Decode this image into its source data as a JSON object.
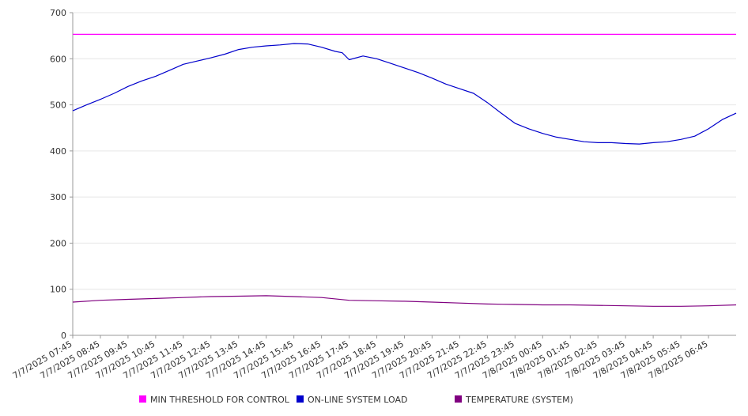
{
  "chart_data": {
    "type": "line",
    "title": "",
    "xlabel": "",
    "ylabel": "",
    "ylim": [
      0,
      700
    ],
    "yticks": [
      0,
      100,
      200,
      300,
      400,
      500,
      600,
      700
    ],
    "xticks": [
      "7/7/2025 07:45",
      "7/7/2025 08:45",
      "7/7/2025 09:45",
      "7/7/2025 10:45",
      "7/7/2025 11:45",
      "7/7/2025 12:45",
      "7/7/2025 13:45",
      "7/7/2025 14:45",
      "7/7/2025 15:45",
      "7/7/2025 16:45",
      "7/7/2025 17:45",
      "7/7/2025 18:45",
      "7/7/2025 19:45",
      "7/7/2025 20:45",
      "7/7/2025 21:45",
      "7/7/2025 22:45",
      "7/7/2025 23:45",
      "7/8/2025 00:45",
      "7/8/2025 01:45",
      "7/8/2025 02:45",
      "7/8/2025 03:45",
      "7/8/2025 04:45",
      "7/8/2025 05:45",
      "7/8/2025 06:45"
    ],
    "x_start": "7/7/2025 07:45",
    "x_end": "7/8/2025 07:45",
    "grid": true,
    "legend_position": "bottom",
    "series": [
      {
        "name": "MIN THRESHOLD FOR CONTROL",
        "color": "#ff00ff",
        "x": [
          "7/7/2025 07:45",
          "7/8/2025 07:45"
        ],
        "values": [
          653,
          653
        ]
      },
      {
        "name": "ON-LINE SYSTEM LOAD",
        "color": "#0000cc",
        "x": [
          "7/7/2025 07:45",
          "7/7/2025 08:15",
          "7/7/2025 08:45",
          "7/7/2025 09:15",
          "7/7/2025 09:45",
          "7/7/2025 10:15",
          "7/7/2025 10:45",
          "7/7/2025 11:15",
          "7/7/2025 11:45",
          "7/7/2025 12:15",
          "7/7/2025 12:45",
          "7/7/2025 13:15",
          "7/7/2025 13:45",
          "7/7/2025 14:15",
          "7/7/2025 14:45",
          "7/7/2025 15:15",
          "7/7/2025 15:45",
          "7/7/2025 16:15",
          "7/7/2025 16:45",
          "7/7/2025 17:15",
          "7/7/2025 17:30",
          "7/7/2025 17:45",
          "7/7/2025 18:15",
          "7/7/2025 18:45",
          "7/7/2025 19:15",
          "7/7/2025 19:45",
          "7/7/2025 20:15",
          "7/7/2025 20:45",
          "7/7/2025 21:15",
          "7/7/2025 21:45",
          "7/7/2025 22:15",
          "7/7/2025 22:45",
          "7/7/2025 23:15",
          "7/7/2025 23:45",
          "7/8/2025 00:15",
          "7/8/2025 00:45",
          "7/8/2025 01:15",
          "7/8/2025 01:45",
          "7/8/2025 02:15",
          "7/8/2025 02:45",
          "7/8/2025 03:15",
          "7/8/2025 03:45",
          "7/8/2025 04:15",
          "7/8/2025 04:45",
          "7/8/2025 05:15",
          "7/8/2025 05:45",
          "7/8/2025 06:15",
          "7/8/2025 06:45",
          "7/8/2025 07:15",
          "7/8/2025 07:45"
        ],
        "values": [
          487,
          500,
          512,
          525,
          540,
          552,
          562,
          575,
          588,
          595,
          602,
          610,
          620,
          625,
          628,
          630,
          633,
          632,
          625,
          616,
          613,
          598,
          606,
          600,
          590,
          580,
          570,
          558,
          545,
          535,
          525,
          505,
          482,
          460,
          448,
          438,
          430,
          425,
          420,
          418,
          418,
          416,
          415,
          418,
          420,
          425,
          432,
          448,
          468,
          482
        ]
      },
      {
        "name": "TEMPERATURE (SYSTEM)",
        "color": "#800080",
        "x": [
          "7/7/2025 07:45",
          "7/7/2025 08:45",
          "7/7/2025 09:45",
          "7/7/2025 10:45",
          "7/7/2025 11:45",
          "7/7/2025 12:45",
          "7/7/2025 13:45",
          "7/7/2025 14:45",
          "7/7/2025 15:45",
          "7/7/2025 16:45",
          "7/7/2025 17:45",
          "7/7/2025 18:45",
          "7/7/2025 19:45",
          "7/7/2025 20:45",
          "7/7/2025 21:45",
          "7/7/2025 22:45",
          "7/7/2025 23:45",
          "7/8/2025 00:45",
          "7/8/2025 01:45",
          "7/8/2025 02:45",
          "7/8/2025 03:45",
          "7/8/2025 04:45",
          "7/8/2025 05:45",
          "7/8/2025 06:45",
          "7/8/2025 07:45"
        ],
        "values": [
          72,
          76,
          78,
          80,
          82,
          84,
          85,
          86,
          84,
          82,
          76,
          75,
          74,
          72,
          70,
          68,
          67,
          66,
          66,
          65,
          64,
          63,
          63,
          64,
          66
        ]
      }
    ]
  }
}
